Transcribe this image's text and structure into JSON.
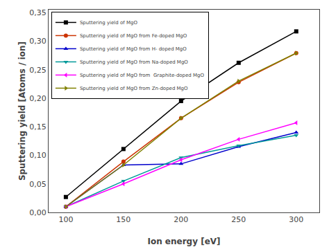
{
  "chart_data": {
    "type": "line",
    "x": [
      100,
      150,
      200,
      250,
      300
    ],
    "series": [
      {
        "name": "Sputtering yield of MgO",
        "values": [
          0.027,
          0.111,
          0.195,
          0.262,
          0.317
        ],
        "color": "#000000",
        "marker": "square",
        "line_style": "solid"
      },
      {
        "name": "Sputtering yield of MgO from Fe-doped MgO",
        "values": [
          0.01,
          0.089,
          0.165,
          0.228,
          0.279
        ],
        "color": "#cc3300",
        "marker": "circle",
        "line_style": "solid"
      },
      {
        "name": "Sputtering yield of MgO from H- doped MgO",
        "values": [
          0.01,
          0.083,
          0.085,
          0.115,
          0.14
        ],
        "color": "#0000cc",
        "marker": "triangle-up",
        "line_style": "solid"
      },
      {
        "name": "Sputtering yield of MgO from Na-doped MgO",
        "values": [
          0.01,
          0.055,
          0.096,
          0.117,
          0.135
        ],
        "color": "#009999",
        "marker": "triangle-down",
        "line_style": "solid"
      },
      {
        "name": "Sputtering yield of MgO from  Graphite-doped MgO",
        "values": [
          0.01,
          0.05,
          0.092,
          0.128,
          0.157
        ],
        "color": "#ff00ff",
        "marker": "triangle-left",
        "line_style": "solid"
      },
      {
        "name": "Sputtering yield of MgO from Zn-doped MgO",
        "values": [
          0.01,
          0.083,
          0.165,
          0.23,
          0.279
        ],
        "color": "#808000",
        "marker": "triangle-right",
        "line_style": "solid"
      }
    ],
    "xlabel": "Ion energy [eV]",
    "ylabel": "Sputtering yield [Atoms / ion]",
    "xlim": [
      85,
      320
    ],
    "ylim": [
      0.0,
      0.355
    ],
    "xticks": [
      100,
      150,
      200,
      250,
      300
    ],
    "yticks": [
      {
        "value": 0.0,
        "label": "0,00"
      },
      {
        "value": 0.05,
        "label": "0,05"
      },
      {
        "value": 0.1,
        "label": "0,10"
      },
      {
        "value": 0.15,
        "label": "0,15"
      },
      {
        "value": 0.2,
        "label": "0,20"
      },
      {
        "value": 0.25,
        "label": "0,25"
      },
      {
        "value": 0.3,
        "label": "0,30"
      },
      {
        "value": 0.35,
        "label": "0,35"
      }
    ],
    "grid": false,
    "legend": "upper left"
  }
}
